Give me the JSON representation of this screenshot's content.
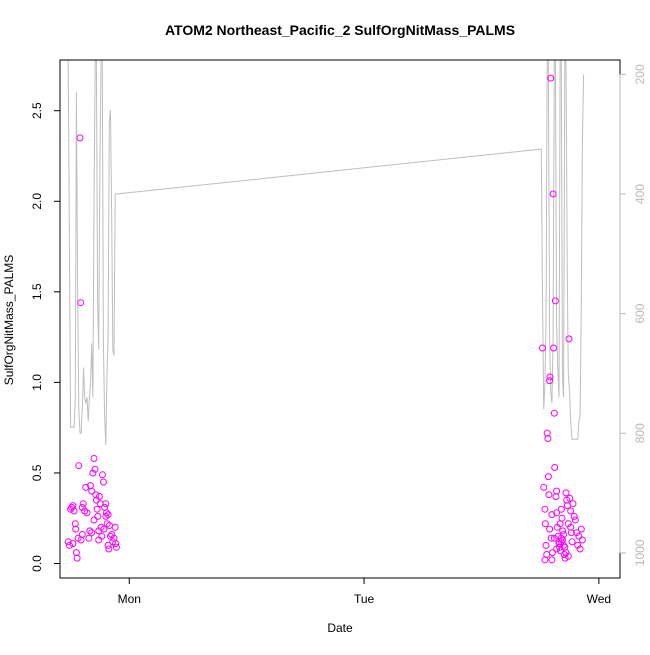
{
  "chart_data": {
    "type": "scatter",
    "title": "ATOM2 Northeast_Pacific_2 SulfOrgNitMass_PALMS",
    "xlabel": "Date",
    "ylabel": "SulfOrgNitMass_PALMS",
    "xlim": [
      -0.295,
      2.09
    ],
    "ylim": [
      -0.08,
      2.78
    ],
    "y2lim": [
      1042,
      176
    ],
    "x_ticks": [
      {
        "value": 0,
        "label": "Mon"
      },
      {
        "value": 1,
        "label": "Tue"
      },
      {
        "value": 2,
        "label": "Wed"
      }
    ],
    "y_ticks": [
      {
        "value": 0.0,
        "label": "0.0"
      },
      {
        "value": 0.5,
        "label": "0.5"
      },
      {
        "value": 1.0,
        "label": "1.0"
      },
      {
        "value": 1.5,
        "label": "1.5"
      },
      {
        "value": 2.0,
        "label": "2.0"
      },
      {
        "value": 2.5,
        "label": "2.5"
      }
    ],
    "y2_ticks": [
      {
        "value": 200,
        "label": "200"
      },
      {
        "value": 400,
        "label": "400"
      },
      {
        "value": 600,
        "label": "600"
      },
      {
        "value": 800,
        "label": "800"
      },
      {
        "value": 1000,
        "label": "1000"
      }
    ],
    "grid": false,
    "colors": {
      "points": "#ff00ff",
      "line": "#bebebe",
      "axis": "#000000",
      "axis_right": "#b9b9b9"
    },
    "series": [
      {
        "kind": "points",
        "axis": "left",
        "points": [
          [
            -0.26,
            0.12
          ],
          [
            -0.255,
            0.1
          ],
          [
            -0.25,
            0.3
          ],
          [
            -0.245,
            0.31
          ],
          [
            -0.24,
            0.32
          ],
          [
            -0.235,
            0.29
          ],
          [
            -0.23,
            0.22
          ],
          [
            -0.228,
            0.19
          ],
          [
            -0.225,
            0.06
          ],
          [
            -0.222,
            0.03
          ],
          [
            -0.218,
            0.14
          ],
          [
            -0.215,
            0.54
          ],
          [
            -0.21,
            2.35
          ],
          [
            -0.207,
            1.44
          ],
          [
            -0.205,
            0.13
          ],
          [
            -0.2,
            0.31
          ],
          [
            -0.196,
            0.33
          ],
          [
            -0.19,
            0.29
          ],
          [
            -0.185,
            0.42
          ],
          [
            -0.18,
            0.28
          ],
          [
            -0.172,
            0.14
          ],
          [
            -0.168,
            0.18
          ],
          [
            -0.165,
            0.43
          ],
          [
            -0.16,
            0.4
          ],
          [
            -0.155,
            0.5
          ],
          [
            -0.15,
            0.58
          ],
          [
            -0.146,
            0.52
          ],
          [
            -0.142,
            0.38
          ],
          [
            -0.14,
            0.35
          ],
          [
            -0.137,
            0.3
          ],
          [
            -0.134,
            0.26
          ],
          [
            -0.13,
            0.18
          ],
          [
            -0.127,
            0.37
          ],
          [
            -0.124,
            0.33
          ],
          [
            -0.12,
            0.2
          ],
          [
            -0.117,
            0.15
          ],
          [
            -0.114,
            0.49
          ],
          [
            -0.11,
            0.45
          ],
          [
            -0.108,
            0.19
          ],
          [
            -0.105,
            0.31
          ],
          [
            -0.1,
            0.33
          ],
          [
            -0.097,
            0.28
          ],
          [
            -0.094,
            0.22
          ],
          [
            -0.09,
            0.1
          ],
          [
            -0.087,
            0.08
          ],
          [
            -0.084,
            0.21
          ],
          [
            -0.08,
            0.15
          ],
          [
            -0.075,
            0.16
          ],
          [
            -0.07,
            0.12
          ],
          [
            -0.065,
            0.14
          ],
          [
            -0.06,
            0.2
          ],
          [
            -0.058,
            0.11
          ],
          [
            -0.055,
            0.09
          ],
          [
            -0.15,
            0.24
          ],
          [
            -0.16,
            0.17
          ],
          [
            -0.13,
            0.13
          ],
          [
            -0.1,
            0.26
          ],
          [
            -0.09,
            0.27
          ],
          [
            -0.2,
            0.16
          ],
          [
            -0.24,
            0.11
          ],
          [
            1.76,
            1.19
          ],
          [
            1.765,
            0.42
          ],
          [
            1.77,
            0.3
          ],
          [
            1.772,
            0.22
          ],
          [
            1.775,
            0.1
          ],
          [
            1.778,
            0.05
          ],
          [
            1.78,
            0.72
          ],
          [
            1.783,
            0.69
          ],
          [
            1.785,
            0.48
          ],
          [
            1.787,
            0.38
          ],
          [
            1.79,
            1.01
          ],
          [
            1.792,
            1.03
          ],
          [
            1.795,
            2.68
          ],
          [
            1.797,
            0.14
          ],
          [
            1.8,
            0.02
          ],
          [
            1.802,
            0.06
          ],
          [
            1.805,
            2.04
          ],
          [
            1.807,
            1.19
          ],
          [
            1.81,
            0.83
          ],
          [
            1.812,
            0.53
          ],
          [
            1.815,
            1.45
          ],
          [
            1.817,
            0.37
          ],
          [
            1.82,
            0.28
          ],
          [
            1.823,
            0.2
          ],
          [
            1.826,
            0.15
          ],
          [
            1.83,
            0.12
          ],
          [
            1.833,
            0.09
          ],
          [
            1.836,
            0.07
          ],
          [
            1.84,
            0.3
          ],
          [
            1.843,
            0.25
          ],
          [
            1.846,
            0.18
          ],
          [
            1.85,
            0.1
          ],
          [
            1.853,
            0.05
          ],
          [
            1.856,
            0.03
          ],
          [
            1.86,
            0.39
          ],
          [
            1.863,
            0.35
          ],
          [
            1.866,
            0.32
          ],
          [
            1.87,
            0.22
          ],
          [
            1.873,
            1.24
          ],
          [
            1.876,
            0.36
          ],
          [
            1.88,
            0.29
          ],
          [
            1.883,
            0.17
          ],
          [
            1.886,
            0.12
          ],
          [
            1.89,
            0.33
          ],
          [
            1.895,
            0.26
          ],
          [
            1.9,
            0.24
          ],
          [
            1.905,
            0.17
          ],
          [
            1.91,
            0.1
          ],
          [
            1.915,
            0.15
          ],
          [
            1.92,
            0.08
          ],
          [
            1.925,
            0.19
          ],
          [
            1.93,
            0.13
          ],
          [
            1.84,
            0.14
          ],
          [
            1.85,
            0.16
          ],
          [
            1.86,
            0.06
          ],
          [
            1.79,
            0.19
          ],
          [
            1.8,
            0.27
          ],
          [
            1.82,
            0.4
          ],
          [
            1.83,
            0.11
          ],
          [
            1.87,
            0.04
          ],
          [
            1.84,
            0.12
          ],
          [
            1.81,
            0.14
          ],
          [
            1.82,
            0.08
          ],
          [
            1.88,
            0.2
          ],
          [
            1.77,
            0.02
          ],
          [
            1.835,
            0.22
          ],
          [
            1.845,
            0.13
          ],
          [
            1.855,
            0.09
          ]
        ]
      },
      {
        "kind": "line",
        "axis": "right",
        "points": [
          [
            -0.26,
            176
          ],
          [
            -0.25,
            790
          ],
          [
            -0.24,
            790
          ],
          [
            -0.235,
            790
          ],
          [
            -0.23,
            740
          ],
          [
            -0.225,
            230
          ],
          [
            -0.22,
            550
          ],
          [
            -0.215,
            760
          ],
          [
            -0.21,
            800
          ],
          [
            -0.205,
            800
          ],
          [
            -0.2,
            760
          ],
          [
            -0.195,
            690
          ],
          [
            -0.19,
            740
          ],
          [
            -0.185,
            750
          ],
          [
            -0.18,
            740
          ],
          [
            -0.175,
            780
          ],
          [
            -0.17,
            740
          ],
          [
            -0.165,
            720
          ],
          [
            -0.16,
            650
          ],
          [
            -0.155,
            740
          ],
          [
            -0.15,
            420
          ],
          [
            -0.145,
            176
          ],
          [
            -0.14,
            176
          ],
          [
            -0.135,
            580
          ],
          [
            -0.13,
            660
          ],
          [
            -0.125,
            350
          ],
          [
            -0.12,
            176
          ],
          [
            -0.115,
            176
          ],
          [
            -0.11,
            650
          ],
          [
            -0.105,
            770
          ],
          [
            -0.1,
            820
          ],
          [
            -0.095,
            700
          ],
          [
            -0.09,
            640
          ],
          [
            -0.085,
            280
          ],
          [
            -0.08,
            260
          ],
          [
            -0.075,
            440
          ],
          [
            -0.07,
            660
          ],
          [
            -0.065,
            670
          ],
          [
            -0.06,
            400
          ],
          [
            -0.055,
            400
          ],
          [
            1.755,
            325
          ],
          [
            1.76,
            570
          ],
          [
            1.765,
            760
          ],
          [
            1.77,
            720
          ],
          [
            1.775,
            620
          ],
          [
            1.78,
            176
          ],
          [
            1.785,
            176
          ],
          [
            1.79,
            640
          ],
          [
            1.795,
            730
          ],
          [
            1.8,
            750
          ],
          [
            1.805,
            640
          ],
          [
            1.81,
            176
          ],
          [
            1.815,
            176
          ],
          [
            1.82,
            620
          ],
          [
            1.825,
            690
          ],
          [
            1.83,
            740
          ],
          [
            1.835,
            176
          ],
          [
            1.84,
            176
          ],
          [
            1.845,
            710
          ],
          [
            1.85,
            740
          ],
          [
            1.855,
            176
          ],
          [
            1.86,
            176
          ],
          [
            1.865,
            520
          ],
          [
            1.87,
            700
          ],
          [
            1.875,
            730
          ],
          [
            1.88,
            780
          ],
          [
            1.885,
            810
          ],
          [
            1.89,
            810
          ],
          [
            1.895,
            810
          ],
          [
            1.9,
            810
          ],
          [
            1.905,
            810
          ],
          [
            1.91,
            810
          ],
          [
            1.915,
            780
          ],
          [
            1.92,
            770
          ],
          [
            1.925,
            580
          ],
          [
            1.93,
            310
          ],
          [
            1.935,
            200
          ]
        ]
      }
    ]
  }
}
